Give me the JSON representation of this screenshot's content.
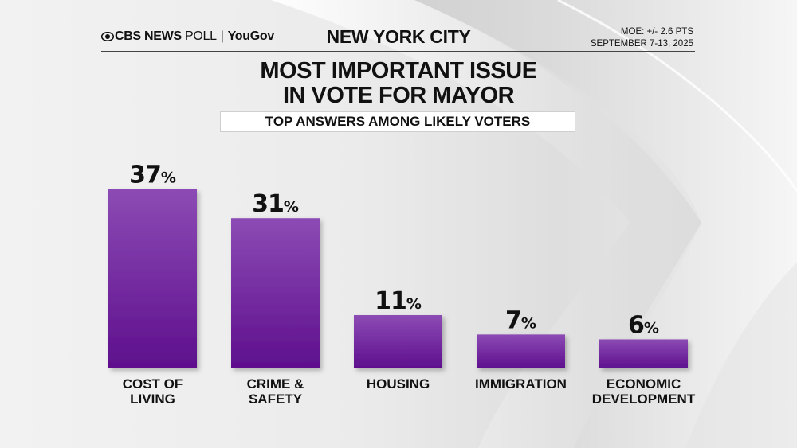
{
  "header": {
    "logo_brand": "CBS NEWS",
    "logo_poll": "POLL",
    "logo_partner": "YouGov",
    "region": "NEW YORK CITY",
    "moe": "MOE: +/- 2.6 PTS",
    "dates": "SEPTEMBER 7-13, 2025"
  },
  "colors": {
    "bar_top": "#8c4bb4",
    "bar_bottom": "#5e0f8d",
    "text": "#111111"
  },
  "chart_data": {
    "type": "bar",
    "title": "MOST IMPORTANT ISSUE IN VOTE FOR MAYOR",
    "title_lines": [
      "MOST IMPORTANT ISSUE",
      "IN VOTE FOR MAYOR"
    ],
    "subtitle": "TOP ANSWERS AMONG LIKELY VOTERS",
    "categories": [
      [
        "COST OF",
        "LIVING"
      ],
      [
        "CRIME &",
        "SAFETY"
      ],
      [
        "HOUSING"
      ],
      [
        "IMMIGRATION"
      ],
      [
        "ECONOMIC",
        "DEVELOPMENT"
      ]
    ],
    "values": [
      37,
      31,
      11,
      7,
      6
    ],
    "value_suffix": "%",
    "ylim": [
      0,
      40
    ],
    "xlabel": "",
    "ylabel": "",
    "grid": false,
    "legend": "none"
  }
}
